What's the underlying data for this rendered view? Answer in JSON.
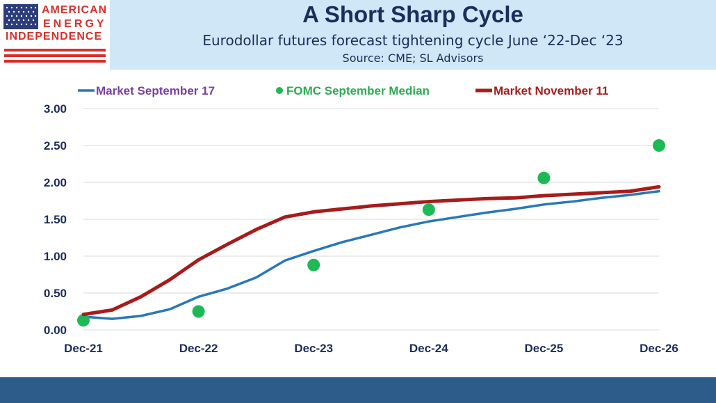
{
  "brand": {
    "line1": "AMERICAN",
    "line2": "ENERGY",
    "line3": "INDEPENDENCE"
  },
  "header": {
    "title": "A Short Sharp Cycle",
    "subtitle": "Eurodollar futures forecast tightening cycle June ‘22-Dec ‘23",
    "source": "Source: CME; SL Advisors"
  },
  "colors": {
    "market_sep": "#2878b8",
    "fomc": "#1db954",
    "market_nov": "#a61c1c",
    "axis_text": "#1c2c5c",
    "grid": "#d9d9d9",
    "legend_sep_text": "#7a3fa0",
    "legend_fomc_text": "#2eaa55",
    "legend_nov_text": "#a61c1c"
  },
  "chart_data": {
    "type": "line",
    "title": "A Short Sharp Cycle",
    "xlabel": "",
    "ylabel": "",
    "xlim": [
      0,
      5
    ],
    "ylim": [
      0,
      3
    ],
    "x_ticks": [
      "Dec-21",
      "Dec-22",
      "Dec-23",
      "Dec-24",
      "Dec-25",
      "Dec-26"
    ],
    "y_ticks": [
      "0.00",
      "0.50",
      "1.00",
      "1.50",
      "2.00",
      "2.50",
      "3.00"
    ],
    "legend_position": "top",
    "grid": true,
    "series": [
      {
        "name": "Market September 17",
        "type": "line",
        "x": [
          0,
          0.25,
          0.5,
          0.75,
          1,
          1.25,
          1.5,
          1.75,
          2,
          2.25,
          2.5,
          2.75,
          3,
          3.25,
          3.5,
          3.75,
          4,
          4.25,
          4.5,
          4.75,
          5
        ],
        "values": [
          0.18,
          0.15,
          0.19,
          0.28,
          0.45,
          0.56,
          0.71,
          0.94,
          1.07,
          1.19,
          1.29,
          1.39,
          1.47,
          1.53,
          1.59,
          1.64,
          1.7,
          1.74,
          1.79,
          1.83,
          1.88
        ]
      },
      {
        "name": "FOMC September Median",
        "type": "scatter",
        "x": [
          0,
          1,
          2,
          3,
          4,
          5
        ],
        "values": [
          0.13,
          0.25,
          0.88,
          1.63,
          2.06,
          2.5
        ]
      },
      {
        "name": "Market November 11",
        "type": "line",
        "x": [
          0,
          0.25,
          0.5,
          0.75,
          1,
          1.25,
          1.5,
          1.75,
          2,
          2.25,
          2.5,
          2.75,
          3,
          3.25,
          3.5,
          3.75,
          4,
          4.25,
          4.5,
          4.75,
          5
        ],
        "values": [
          0.21,
          0.27,
          0.45,
          0.68,
          0.95,
          1.16,
          1.36,
          1.53,
          1.6,
          1.64,
          1.68,
          1.71,
          1.74,
          1.76,
          1.78,
          1.79,
          1.82,
          1.84,
          1.86,
          1.88,
          1.94
        ]
      }
    ]
  }
}
